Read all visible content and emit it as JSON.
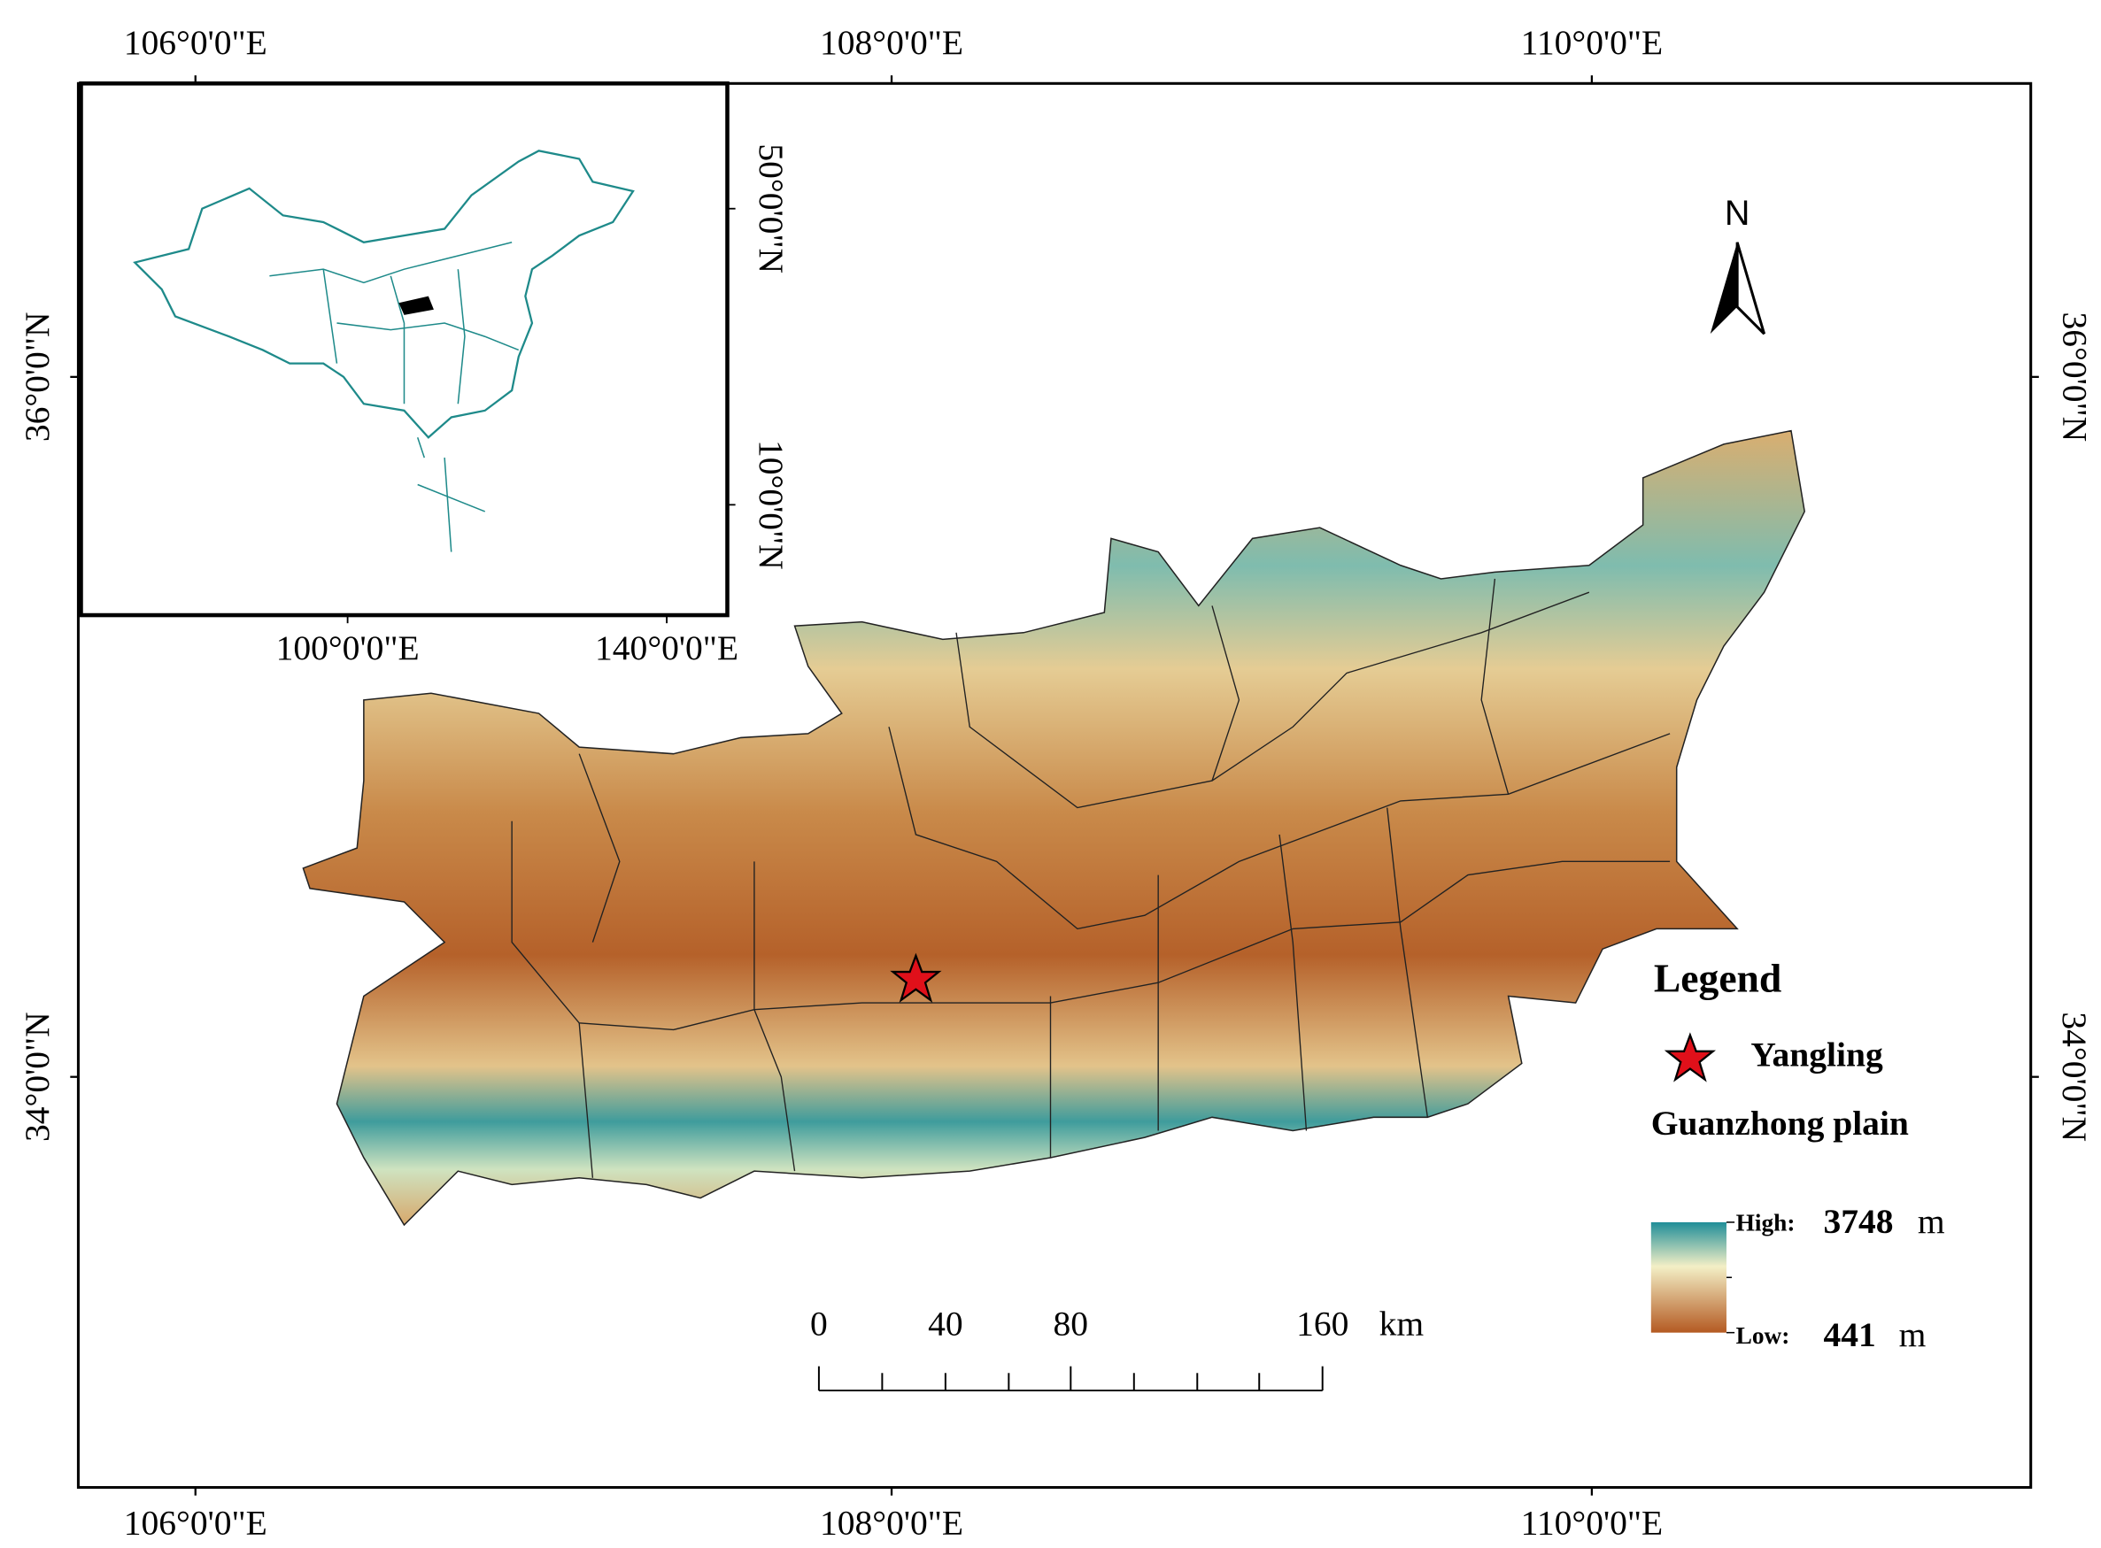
{
  "frame": {
    "top_labels": [
      "106°0'0\"E",
      "108°0'0\"E",
      "110°0'0\"E"
    ],
    "bottom_labels": [
      "106°0'0\"E",
      "108°0'0\"E",
      "110°0'0\"E"
    ],
    "left_labels": [
      "36°0'0\"N",
      "34°0'0\"N"
    ],
    "right_labels": [
      "36°0'0\"N",
      "34°0'0\"N"
    ]
  },
  "inset": {
    "x_labels": [
      "100°0'0\"E",
      "140°0'0\"E"
    ],
    "y_labels": [
      "50°0'0\"N",
      "10°0'0\"N"
    ]
  },
  "north": "N",
  "legend": {
    "title": "Legend",
    "point": "Yangling",
    "area": "Guanzhong plain",
    "high_label": "High:",
    "high_value": "3748",
    "low_label": "Low:",
    "low_value": "441",
    "unit": "m"
  },
  "scale_bar": {
    "labels": [
      "0",
      "40",
      "80",
      "160"
    ],
    "unit": "km"
  }
}
